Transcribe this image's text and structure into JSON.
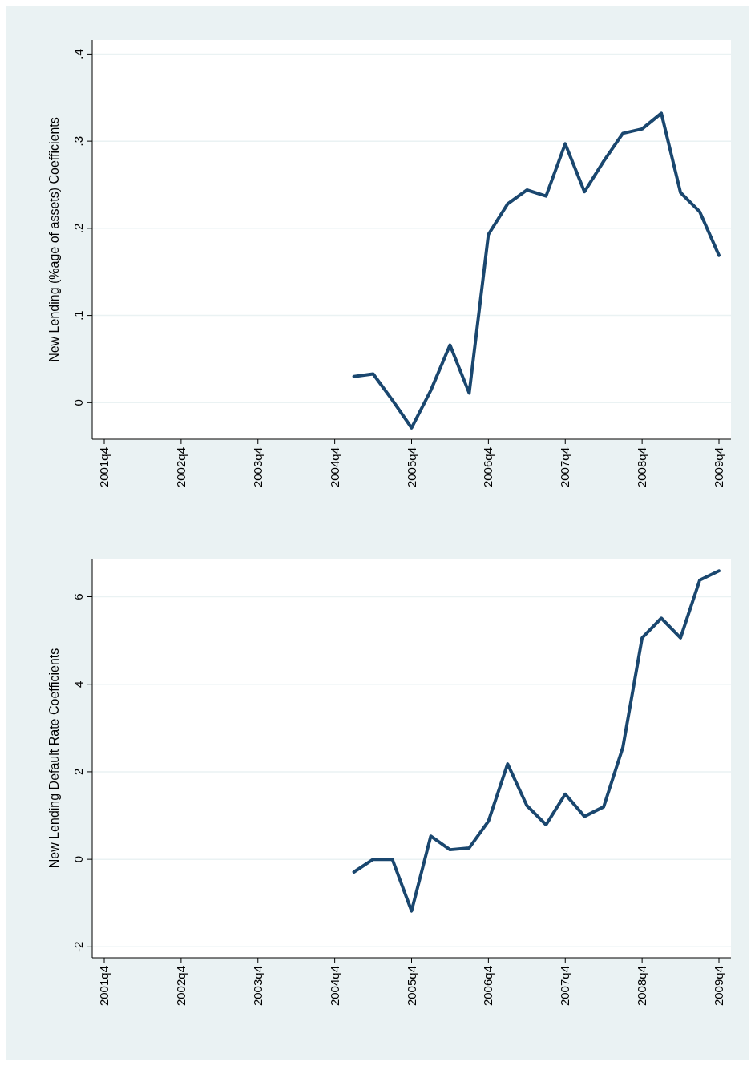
{
  "chart_data": [
    {
      "type": "line",
      "ylabel": "New Lending (%age of assets) Coefficients",
      "categories": [
        "2001q4",
        null,
        null,
        null,
        "2002q4",
        null,
        null,
        null,
        "2003q4",
        null,
        null,
        null,
        "2004q4",
        null,
        null,
        null,
        "2005q4",
        null,
        null,
        null,
        "2006q4",
        null,
        null,
        null,
        "2007q4",
        null,
        null,
        null,
        "2008q4",
        null,
        null,
        null,
        "2009q4"
      ],
      "series": [
        {
          "color": "#1a476f",
          "values": [
            null,
            null,
            null,
            null,
            null,
            null,
            null,
            null,
            null,
            null,
            null,
            null,
            null,
            0.03,
            0.033,
            0.003,
            -0.029,
            0.014,
            0.066,
            0.011,
            0.193,
            0.228,
            0.244,
            0.237,
            0.297,
            0.242,
            0.277,
            0.309,
            0.314,
            0.332,
            0.241,
            0.219,
            0.169
          ]
        }
      ],
      "ylim": [
        -0.042,
        0.416
      ],
      "yticks": [
        0,
        {
          "value": 0.1,
          "label": ".1"
        },
        {
          "value": 0.2,
          "label": ".2"
        },
        {
          "value": 0.3,
          "label": ".3"
        },
        {
          "value": 0.4,
          "label": ".4"
        }
      ],
      "grid": "y",
      "marker": "none",
      "line_style": "solid"
    },
    {
      "type": "line",
      "ylabel": "New Lending Default Rate Coefficients",
      "categories": [
        "2001q4",
        null,
        null,
        null,
        "2002q4",
        null,
        null,
        null,
        "2003q4",
        null,
        null,
        null,
        "2004q4",
        null,
        null,
        null,
        "2005q4",
        null,
        null,
        null,
        "2006q4",
        null,
        null,
        null,
        "2007q4",
        null,
        null,
        null,
        "2008q4",
        null,
        null,
        null,
        "2009q4"
      ],
      "series": [
        {
          "color": "#1a476f",
          "values": [
            null,
            null,
            null,
            null,
            null,
            null,
            null,
            null,
            null,
            null,
            null,
            null,
            null,
            -0.29,
            0,
            0,
            -1.18,
            0.53,
            0.22,
            0.26,
            0.87,
            2.18,
            1.23,
            0.79,
            1.49,
            0.98,
            1.2,
            2.56,
            5.06,
            5.51,
            5.06,
            6.38,
            6.59
          ]
        }
      ],
      "ylim": [
        -2.25,
        6.87
      ],
      "yticks": [
        -2,
        0,
        2,
        4,
        6
      ],
      "grid": "y",
      "marker": "none",
      "line_style": "solid"
    }
  ]
}
